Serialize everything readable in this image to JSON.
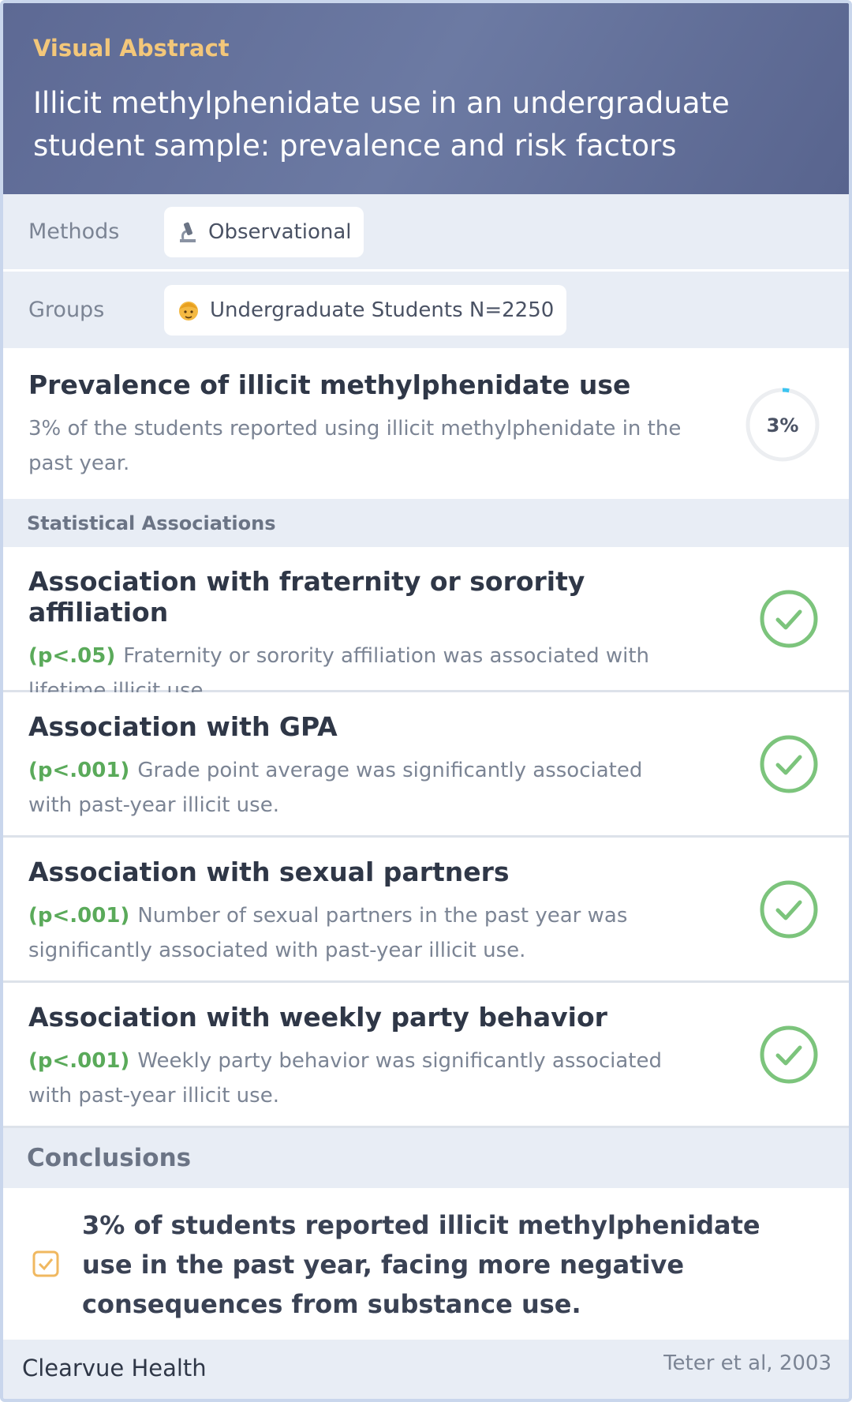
{
  "header": {
    "label": "Visual Abstract",
    "title": "Illicit methylphenidate use in an undergraduate student sample: prevalence and risk factors"
  },
  "methods": {
    "label": "Methods",
    "value": "Observational"
  },
  "groups": {
    "label": "Groups",
    "value": "Undergraduate Students N=2250"
  },
  "prevalence": {
    "title": "Prevalence of illicit methylphenidate use",
    "text": "3% of the students reported using illicit methylphenidate in the past year.",
    "percent": {
      "value": 3,
      "label": "3%"
    }
  },
  "associations": {
    "title": "Statistical Associations",
    "items": [
      {
        "title": "Association with fraternity or sorority affiliation",
        "p": "(p<.05)",
        "text": "Fraternity or sorority affiliation was associated with lifetime illicit use."
      },
      {
        "title": "Association with GPA",
        "p": "(p<.001)",
        "text": "Grade point average was significantly associated with past-year illicit use."
      },
      {
        "title": "Association with sexual partners",
        "p": "(p<.001)",
        "text": "Number of sexual partners in the past year was significantly associated with past-year illicit use."
      },
      {
        "title": "Association with weekly party behavior",
        "p": "(p<.001)",
        "text": "Weekly party behavior was significantly associated with past-year illicit use."
      }
    ]
  },
  "conclusions": {
    "title": "Conclusions",
    "text": "3% of students reported illicit methylphenidate use in the past year, facing more negative consequences from substance use."
  },
  "footer": {
    "brand": "Clearvue Health",
    "citation": "Teter et al, 2003"
  }
}
